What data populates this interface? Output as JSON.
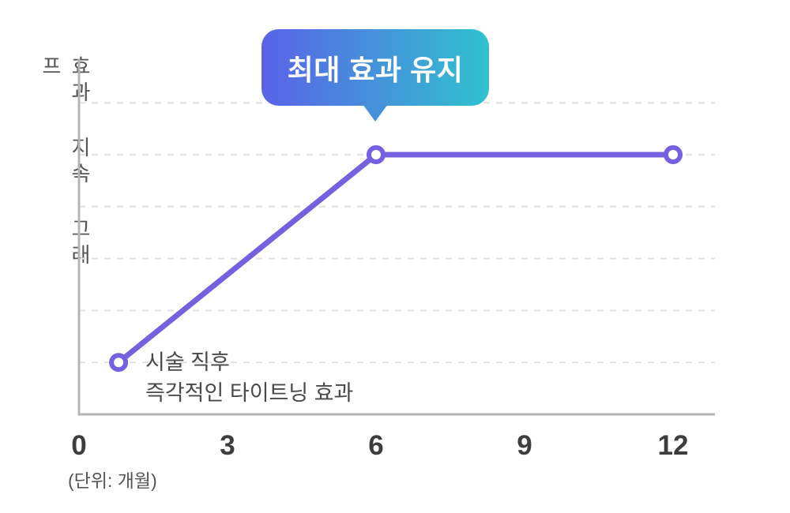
{
  "chart_data": {
    "type": "line",
    "title": "효과 지속 그래프",
    "ylabel": "효과 지속 그래프",
    "xlabel": "(단위: 개월)",
    "x_ticks": [
      "0",
      "3",
      "6",
      "9",
      "12"
    ],
    "x_tick_values": [
      0,
      3,
      6,
      9,
      12
    ],
    "x_range": [
      0,
      12
    ],
    "grid": "dashed horizontal",
    "gridline_levels": [
      1,
      2,
      3,
      4,
      5,
      6
    ],
    "series": [
      {
        "name": "효과 지속",
        "x_months": [
          0.8,
          6,
          12
        ],
        "y_levels": [
          1,
          5,
          5
        ]
      }
    ],
    "annotations": [
      {
        "type": "callout",
        "text": "최대 효과 유지",
        "target_month": 6
      },
      {
        "type": "label",
        "text": "시술 직후",
        "target_month": 0.8
      },
      {
        "type": "label",
        "text": "즉각적인 타이트닝 효과",
        "target_month": 0.8
      }
    ],
    "colors": {
      "line": "#7660E0",
      "point_fill": "#ffffff",
      "axis": "#b4b4b4",
      "grid_line": "#e2e2e2",
      "callout_gradient_start": "#5A62E8",
      "callout_gradient_end": "#2FC2CE",
      "callout_pointer": "#4592DB",
      "callout_text": "#ffffff",
      "text": "#494949"
    }
  }
}
